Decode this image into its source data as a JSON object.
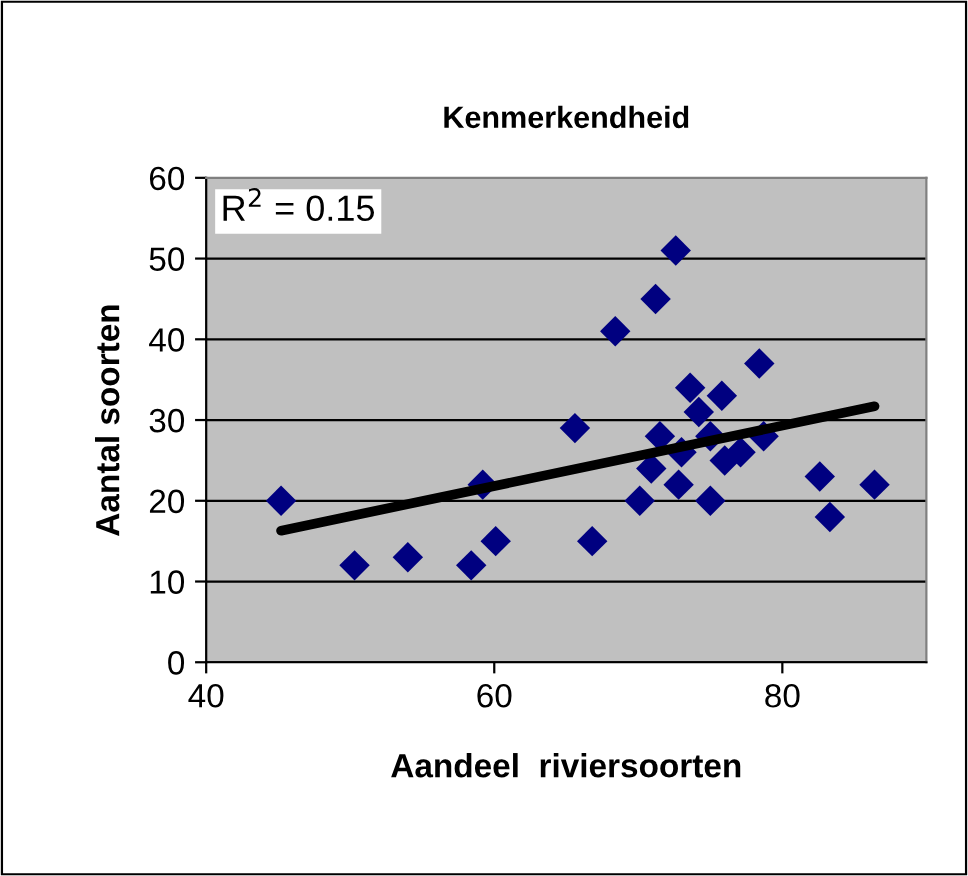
{
  "chart_data": {
    "type": "scatter",
    "title": "Kenmerkendheid",
    "xlabel": "Aandeel  riviersoorten",
    "ylabel": "Aantal soorten",
    "xlim": [
      40,
      90
    ],
    "xticks": [
      40,
      60,
      80
    ],
    "ylim": [
      0,
      60
    ],
    "yticks": [
      0,
      10,
      20,
      30,
      40,
      50,
      60
    ],
    "grid": "y",
    "marker": "diamond",
    "annotations": [
      "R$^{2}$ = 0.15"
    ],
    "series": [
      {
        "color": "#000080",
        "x": [
          45.2,
          50.3,
          54.0,
          58.4,
          59.2,
          60.1,
          65.6,
          66.8,
          68.4,
          70.1,
          71.2,
          70.9,
          71.5,
          72.6,
          72.8,
          73.0,
          73.6,
          74.2,
          75.0,
          75.0,
          75.8,
          76.0,
          77.1,
          78.4,
          78.7,
          82.6,
          83.3,
          86.4
        ],
        "values": [
          20,
          12,
          13,
          12,
          22,
          15,
          29,
          15,
          41,
          20,
          45,
          24,
          28,
          51,
          22,
          26,
          34,
          31,
          28,
          20,
          33,
          25,
          26,
          37,
          28,
          23,
          18,
          22
        ]
      },
      {
        "type": "line",
        "color": "#000000",
        "marker": "none",
        "x": [
          45.2,
          86.4
        ],
        "values": [
          16.3,
          31.7
        ]
      }
    ]
  }
}
